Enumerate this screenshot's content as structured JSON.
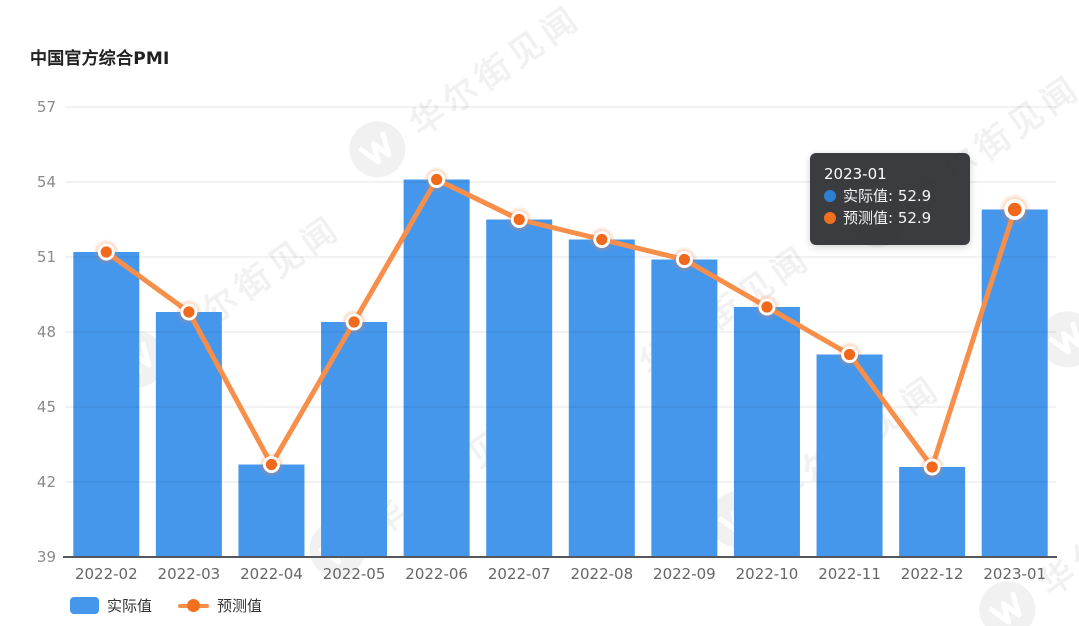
{
  "page": {
    "title": "中国官方综合PMI",
    "background": "#ffffff"
  },
  "chart_data": {
    "type": "bar",
    "title": "中国官方综合PMI",
    "categories": [
      "2022-02",
      "2022-03",
      "2022-04",
      "2022-05",
      "2022-06",
      "2022-07",
      "2022-08",
      "2022-09",
      "2022-10",
      "2022-11",
      "2022-12",
      "2023-01"
    ],
    "series": [
      {
        "name": "实际值",
        "type": "bar",
        "color": "#4597EC",
        "values": [
          51.2,
          48.8,
          42.7,
          48.4,
          54.1,
          52.5,
          51.7,
          50.9,
          49.0,
          47.1,
          42.6,
          52.9
        ]
      },
      {
        "name": "预测值",
        "type": "line",
        "color": "#F78E4A",
        "dot_color": "#F0691C",
        "values": [
          51.2,
          48.8,
          42.7,
          48.4,
          54.1,
          52.5,
          51.7,
          50.9,
          49.0,
          47.1,
          42.6,
          52.9
        ]
      }
    ],
    "ylim": [
      39,
      57
    ],
    "yticks": [
      57,
      54,
      51,
      48,
      45,
      42,
      39
    ],
    "grid": true,
    "legend_position": "bottom-left",
    "highlighted_category": "2023-01"
  },
  "tooltip": {
    "title": "2023-01",
    "rows": [
      {
        "label": "实际值",
        "value": "52.9",
        "text": "实际值: 52.9",
        "marker_color": "#2E7ED2"
      },
      {
        "label": "预测值",
        "value": "52.9",
        "text": "预测值: 52.9",
        "marker_color": "#F2701D"
      }
    ]
  },
  "legend": {
    "items": [
      {
        "label": "实际值",
        "marker": "bar-swatch",
        "color": "#4597EC"
      },
      {
        "label": "预测值",
        "marker": "line-dot",
        "color": "#F78E4A",
        "dot_color": "#F2701D"
      }
    ]
  },
  "watermark": {
    "text": "华尔街见闻",
    "logo": "wallstreetcn-w-icon"
  },
  "colors": {
    "bar": "#4597EC",
    "line": "#F78E4A",
    "line_dot": "#F0691C",
    "tooltip_background": "#2B2D30",
    "axis_line": "#53565A",
    "gridline": "#E0E0E0",
    "axis_label": "#8A8A8A",
    "category_label": "#666666"
  }
}
